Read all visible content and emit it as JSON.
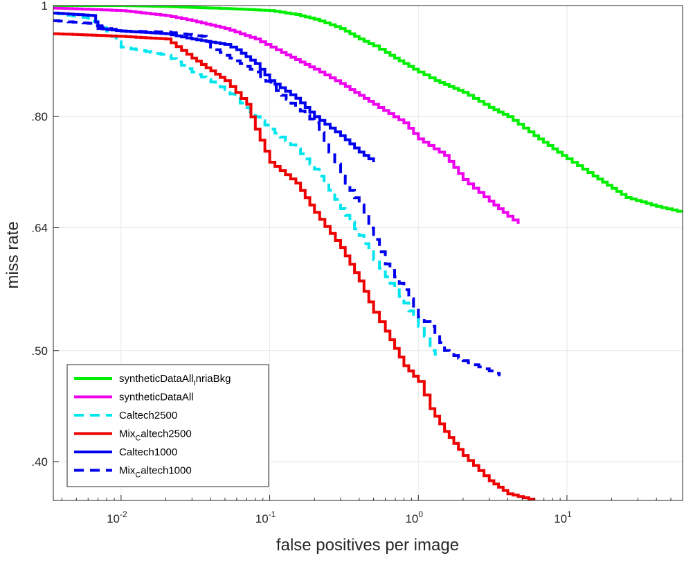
{
  "chart_data": {
    "type": "line",
    "title": "",
    "xlabel": "false positives per image",
    "ylabel": "miss rate",
    "xscale": "log",
    "yscale": "log",
    "xlim": [
      0.0035,
      60
    ],
    "ylim": [
      0.37,
      1
    ],
    "grid": true,
    "legend_position": "bottom-left",
    "x_ticks": [
      {
        "value": 0.01,
        "base": "10",
        "exp": "-2"
      },
      {
        "value": 0.1,
        "base": "10",
        "exp": "-1"
      },
      {
        "value": 1,
        "base": "10",
        "exp": "0"
      },
      {
        "value": 10,
        "base": "10",
        "exp": "1"
      }
    ],
    "y_ticks": [
      {
        "value": 0.4,
        "label": ".40"
      },
      {
        "value": 0.5,
        "label": ".50"
      },
      {
        "value": 0.64,
        "label": ".64"
      },
      {
        "value": 0.8,
        "label": ".80"
      },
      {
        "value": 1,
        "label": "1"
      }
    ],
    "series": [
      {
        "name": "syntheticDataAll_InriaBkg",
        "legend_main": "syntheticDataAll",
        "legend_sub": "I",
        "legend_tail": "nriaBkg",
        "color": "#00ee00",
        "dash": "solid",
        "points": [
          [
            0.0035,
            1.0
          ],
          [
            0.01,
            1.0
          ],
          [
            0.02,
            0.998
          ],
          [
            0.05,
            0.994
          ],
          [
            0.1,
            0.99
          ],
          [
            0.15,
            0.982
          ],
          [
            0.2,
            0.973
          ],
          [
            0.3,
            0.955
          ],
          [
            0.4,
            0.935
          ],
          [
            0.5,
            0.922
          ],
          [
            0.6,
            0.91
          ],
          [
            0.8,
            0.89
          ],
          [
            1.0,
            0.875
          ],
          [
            1.3,
            0.86
          ],
          [
            2.0,
            0.84
          ],
          [
            3.0,
            0.815
          ],
          [
            4.0,
            0.8
          ],
          [
            6.0,
            0.77
          ],
          [
            10.0,
            0.735
          ],
          [
            15.0,
            0.71
          ],
          [
            25.0,
            0.68
          ],
          [
            40.0,
            0.668
          ],
          [
            60.0,
            0.66
          ]
        ]
      },
      {
        "name": "syntheticDataAll",
        "legend_main": "syntheticDataAll",
        "legend_sub": "",
        "legend_tail": "",
        "color": "#ee00ee",
        "dash": "solid",
        "points": [
          [
            0.0035,
            0.995
          ],
          [
            0.01,
            0.99
          ],
          [
            0.02,
            0.98
          ],
          [
            0.03,
            0.97
          ],
          [
            0.05,
            0.955
          ],
          [
            0.08,
            0.935
          ],
          [
            0.12,
            0.91
          ],
          [
            0.2,
            0.88
          ],
          [
            0.3,
            0.855
          ],
          [
            0.5,
            0.82
          ],
          [
            0.8,
            0.79
          ],
          [
            1.0,
            0.765
          ],
          [
            1.5,
            0.74
          ],
          [
            2.0,
            0.705
          ],
          [
            3.0,
            0.675
          ],
          [
            4.0,
            0.655
          ],
          [
            4.7,
            0.645
          ]
        ]
      },
      {
        "name": "Caltech2500",
        "legend_main": "Caltech2500",
        "legend_sub": "",
        "legend_tail": "",
        "color": "#00e5ee",
        "dash": "dashed",
        "points": [
          [
            0.0035,
            0.985
          ],
          [
            0.006,
            0.975
          ],
          [
            0.008,
            0.95
          ],
          [
            0.01,
            0.92
          ],
          [
            0.02,
            0.905
          ],
          [
            0.03,
            0.875
          ],
          [
            0.05,
            0.845
          ],
          [
            0.08,
            0.8
          ],
          [
            0.1,
            0.78
          ],
          [
            0.15,
            0.75
          ],
          [
            0.2,
            0.72
          ],
          [
            0.25,
            0.69
          ],
          [
            0.3,
            0.665
          ],
          [
            0.4,
            0.63
          ],
          [
            0.5,
            0.6
          ],
          [
            0.6,
            0.58
          ],
          [
            0.8,
            0.55
          ],
          [
            1.0,
            0.525
          ],
          [
            1.2,
            0.505
          ],
          [
            1.3,
            0.495
          ]
        ]
      },
      {
        "name": "Mix_Caltech2500",
        "legend_main": "Mix",
        "legend_sub": "C",
        "legend_tail": "altech2500",
        "color": "#ee0000",
        "dash": "solid",
        "points": [
          [
            0.0035,
            0.945
          ],
          [
            0.01,
            0.94
          ],
          [
            0.02,
            0.935
          ],
          [
            0.03,
            0.9
          ],
          [
            0.05,
            0.86
          ],
          [
            0.07,
            0.82
          ],
          [
            0.08,
            0.78
          ],
          [
            0.1,
            0.73
          ],
          [
            0.15,
            0.7
          ],
          [
            0.2,
            0.66
          ],
          [
            0.3,
            0.615
          ],
          [
            0.4,
            0.575
          ],
          [
            0.5,
            0.54
          ],
          [
            0.6,
            0.52
          ],
          [
            0.8,
            0.485
          ],
          [
            1.0,
            0.47
          ],
          [
            1.2,
            0.445
          ],
          [
            1.5,
            0.425
          ],
          [
            2.0,
            0.405
          ],
          [
            3.0,
            0.385
          ],
          [
            4.0,
            0.375
          ],
          [
            6.0,
            0.37
          ]
        ]
      },
      {
        "name": "Caltech1000",
        "legend_main": "Caltech1000",
        "legend_sub": "",
        "legend_tail": "",
        "color": "#0000ee",
        "dash": "solid",
        "points": [
          [
            0.0035,
            0.985
          ],
          [
            0.0065,
            0.98
          ],
          [
            0.007,
            0.955
          ],
          [
            0.01,
            0.95
          ],
          [
            0.02,
            0.945
          ],
          [
            0.03,
            0.935
          ],
          [
            0.05,
            0.925
          ],
          [
            0.06,
            0.915
          ],
          [
            0.08,
            0.89
          ],
          [
            0.1,
            0.86
          ],
          [
            0.15,
            0.83
          ],
          [
            0.2,
            0.8
          ],
          [
            0.3,
            0.77
          ],
          [
            0.4,
            0.745
          ],
          [
            0.5,
            0.73
          ]
        ]
      },
      {
        "name": "Mix_Caltech1000",
        "legend_main": "Mix",
        "legend_sub": "C",
        "legend_tail": "altech1000",
        "color": "#0000ee",
        "dash": "dashed",
        "points": [
          [
            0.0035,
            0.97
          ],
          [
            0.006,
            0.965
          ],
          [
            0.008,
            0.955
          ],
          [
            0.01,
            0.95
          ],
          [
            0.02,
            0.948
          ],
          [
            0.035,
            0.94
          ],
          [
            0.04,
            0.92
          ],
          [
            0.05,
            0.905
          ],
          [
            0.08,
            0.875
          ],
          [
            0.12,
            0.835
          ],
          [
            0.2,
            0.79
          ],
          [
            0.25,
            0.745
          ],
          [
            0.3,
            0.71
          ],
          [
            0.4,
            0.67
          ],
          [
            0.5,
            0.625
          ],
          [
            0.6,
            0.595
          ],
          [
            0.8,
            0.565
          ],
          [
            1.0,
            0.535
          ],
          [
            1.2,
            0.525
          ],
          [
            1.5,
            0.5
          ],
          [
            2.0,
            0.49
          ],
          [
            3.0,
            0.48
          ],
          [
            3.5,
            0.475
          ]
        ]
      }
    ]
  }
}
